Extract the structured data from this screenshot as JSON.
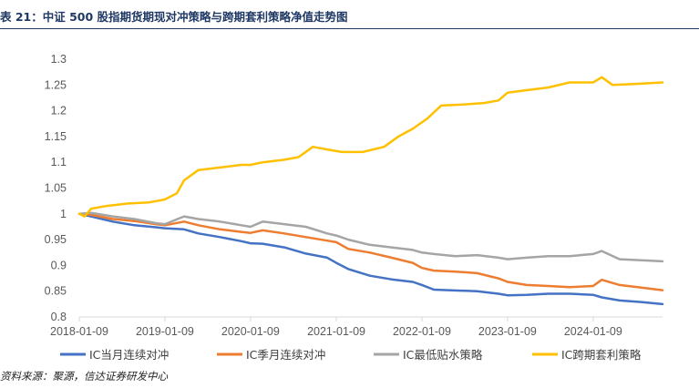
{
  "title": "表 21：中证 500 股指期货期现对冲策略与跨期套利策略净值走势图",
  "source": "资料来源：聚源，信达证券研发中心",
  "chart_data": {
    "type": "line",
    "title": "表 21：中证 500 股指期货期现对冲策略与跨期套利策略净值走势图",
    "xlabel": "",
    "ylabel": "",
    "ylim": [
      0.8,
      1.3
    ],
    "yticks": [
      "1.3",
      "1.25",
      "1.2",
      "1.15",
      "1.1",
      "1.05",
      "1",
      "0.95",
      "0.9",
      "0.85",
      "0.8"
    ],
    "xticks": [
      "2018-01-09",
      "2019-01-09",
      "2020-01-09",
      "2021-01-09",
      "2022-01-09",
      "2023-01-09",
      "2024-01-09"
    ],
    "x_range": [
      "2018-01-09",
      "2024-10-31"
    ],
    "grid": false,
    "legend_position": "bottom",
    "series": [
      {
        "name": "IC当月连续对冲",
        "color": "#4472c4",
        "points": [
          [
            "2018-01-09",
            1.0
          ],
          [
            "2018-03-01",
            0.995
          ],
          [
            "2018-06-01",
            0.985
          ],
          [
            "2018-09-01",
            0.978
          ],
          [
            "2018-12-01",
            0.974
          ],
          [
            "2019-01-09",
            0.972
          ],
          [
            "2019-04-01",
            0.97
          ],
          [
            "2019-06-01",
            0.962
          ],
          [
            "2019-09-01",
            0.955
          ],
          [
            "2019-12-01",
            0.947
          ],
          [
            "2020-01-09",
            0.943
          ],
          [
            "2020-03-01",
            0.942
          ],
          [
            "2020-06-01",
            0.935
          ],
          [
            "2020-09-01",
            0.923
          ],
          [
            "2020-12-01",
            0.915
          ],
          [
            "2021-01-09",
            0.905
          ],
          [
            "2021-03-01",
            0.893
          ],
          [
            "2021-06-01",
            0.88
          ],
          [
            "2021-09-01",
            0.873
          ],
          [
            "2021-12-01",
            0.868
          ],
          [
            "2022-01-09",
            0.862
          ],
          [
            "2022-03-01",
            0.853
          ],
          [
            "2022-05-01",
            0.852
          ],
          [
            "2022-09-01",
            0.85
          ],
          [
            "2022-12-01",
            0.845
          ],
          [
            "2023-01-09",
            0.842
          ],
          [
            "2023-04-01",
            0.843
          ],
          [
            "2023-07-01",
            0.845
          ],
          [
            "2023-10-01",
            0.845
          ],
          [
            "2024-01-09",
            0.843
          ],
          [
            "2024-02-15",
            0.838
          ],
          [
            "2024-05-01",
            0.832
          ],
          [
            "2024-08-01",
            0.829
          ],
          [
            "2024-10-31",
            0.825
          ]
        ]
      },
      {
        "name": "IC季月连续对冲",
        "color": "#ed7d31",
        "points": [
          [
            "2018-01-09",
            1.0
          ],
          [
            "2018-03-01",
            0.998
          ],
          [
            "2018-06-01",
            0.99
          ],
          [
            "2018-09-01",
            0.986
          ],
          [
            "2018-12-01",
            0.98
          ],
          [
            "2019-01-09",
            0.978
          ],
          [
            "2019-04-01",
            0.985
          ],
          [
            "2019-06-01",
            0.978
          ],
          [
            "2019-09-01",
            0.97
          ],
          [
            "2019-12-01",
            0.965
          ],
          [
            "2020-01-09",
            0.963
          ],
          [
            "2020-03-01",
            0.968
          ],
          [
            "2020-06-01",
            0.962
          ],
          [
            "2020-09-01",
            0.955
          ],
          [
            "2020-12-01",
            0.948
          ],
          [
            "2021-01-09",
            0.945
          ],
          [
            "2021-03-01",
            0.932
          ],
          [
            "2021-06-01",
            0.925
          ],
          [
            "2021-09-01",
            0.915
          ],
          [
            "2021-12-01",
            0.905
          ],
          [
            "2022-01-09",
            0.895
          ],
          [
            "2022-03-01",
            0.89
          ],
          [
            "2022-06-01",
            0.888
          ],
          [
            "2022-09-01",
            0.885
          ],
          [
            "2022-12-01",
            0.875
          ],
          [
            "2023-01-09",
            0.868
          ],
          [
            "2023-04-01",
            0.862
          ],
          [
            "2023-07-01",
            0.86
          ],
          [
            "2023-10-01",
            0.858
          ],
          [
            "2024-01-09",
            0.86
          ],
          [
            "2024-02-15",
            0.872
          ],
          [
            "2024-05-01",
            0.862
          ],
          [
            "2024-08-01",
            0.857
          ],
          [
            "2024-10-31",
            0.852
          ]
        ]
      },
      {
        "name": "IC最低贴水策略",
        "color": "#a5a5a5",
        "points": [
          [
            "2018-01-09",
            1.0
          ],
          [
            "2018-03-01",
            1.002
          ],
          [
            "2018-06-01",
            0.995
          ],
          [
            "2018-09-01",
            0.99
          ],
          [
            "2018-12-01",
            0.982
          ],
          [
            "2019-01-09",
            0.98
          ],
          [
            "2019-04-01",
            0.995
          ],
          [
            "2019-06-01",
            0.99
          ],
          [
            "2019-09-01",
            0.985
          ],
          [
            "2019-12-01",
            0.978
          ],
          [
            "2020-01-09",
            0.975
          ],
          [
            "2020-03-01",
            0.985
          ],
          [
            "2020-06-01",
            0.98
          ],
          [
            "2020-09-01",
            0.975
          ],
          [
            "2020-12-01",
            0.962
          ],
          [
            "2021-01-09",
            0.958
          ],
          [
            "2021-03-01",
            0.95
          ],
          [
            "2021-06-01",
            0.94
          ],
          [
            "2021-09-01",
            0.935
          ],
          [
            "2021-12-01",
            0.93
          ],
          [
            "2022-01-09",
            0.925
          ],
          [
            "2022-03-01",
            0.922
          ],
          [
            "2022-06-01",
            0.918
          ],
          [
            "2022-09-01",
            0.92
          ],
          [
            "2022-12-01",
            0.915
          ],
          [
            "2023-01-09",
            0.912
          ],
          [
            "2023-04-01",
            0.915
          ],
          [
            "2023-07-01",
            0.918
          ],
          [
            "2023-10-01",
            0.918
          ],
          [
            "2024-01-09",
            0.922
          ],
          [
            "2024-02-15",
            0.928
          ],
          [
            "2024-05-01",
            0.912
          ],
          [
            "2024-08-01",
            0.91
          ],
          [
            "2024-10-31",
            0.908
          ]
        ]
      },
      {
        "name": "IC跨期套利策略",
        "color": "#ffc000",
        "points": [
          [
            "2018-01-09",
            1.0
          ],
          [
            "2018-02-01",
            0.995
          ],
          [
            "2018-03-01",
            1.01
          ],
          [
            "2018-05-01",
            1.015
          ],
          [
            "2018-08-01",
            1.02
          ],
          [
            "2018-11-01",
            1.022
          ],
          [
            "2019-01-09",
            1.028
          ],
          [
            "2019-03-01",
            1.04
          ],
          [
            "2019-04-01",
            1.065
          ],
          [
            "2019-06-01",
            1.085
          ],
          [
            "2019-09-01",
            1.09
          ],
          [
            "2019-12-01",
            1.095
          ],
          [
            "2020-01-09",
            1.095
          ],
          [
            "2020-03-01",
            1.1
          ],
          [
            "2020-06-01",
            1.105
          ],
          [
            "2020-08-01",
            1.11
          ],
          [
            "2020-10-01",
            1.13
          ],
          [
            "2020-12-01",
            1.125
          ],
          [
            "2021-02-01",
            1.12
          ],
          [
            "2021-05-01",
            1.12
          ],
          [
            "2021-08-01",
            1.13
          ],
          [
            "2021-10-01",
            1.15
          ],
          [
            "2021-12-01",
            1.165
          ],
          [
            "2022-02-01",
            1.185
          ],
          [
            "2022-04-01",
            1.21
          ],
          [
            "2022-07-01",
            1.212
          ],
          [
            "2022-10-01",
            1.215
          ],
          [
            "2022-12-01",
            1.22
          ],
          [
            "2023-01-09",
            1.235
          ],
          [
            "2023-04-01",
            1.24
          ],
          [
            "2023-07-01",
            1.245
          ],
          [
            "2023-10-01",
            1.255
          ],
          [
            "2024-01-09",
            1.255
          ],
          [
            "2024-02-15",
            1.265
          ],
          [
            "2024-04-01",
            1.25
          ],
          [
            "2024-07-01",
            1.252
          ],
          [
            "2024-10-31",
            1.255
          ]
        ]
      }
    ]
  }
}
